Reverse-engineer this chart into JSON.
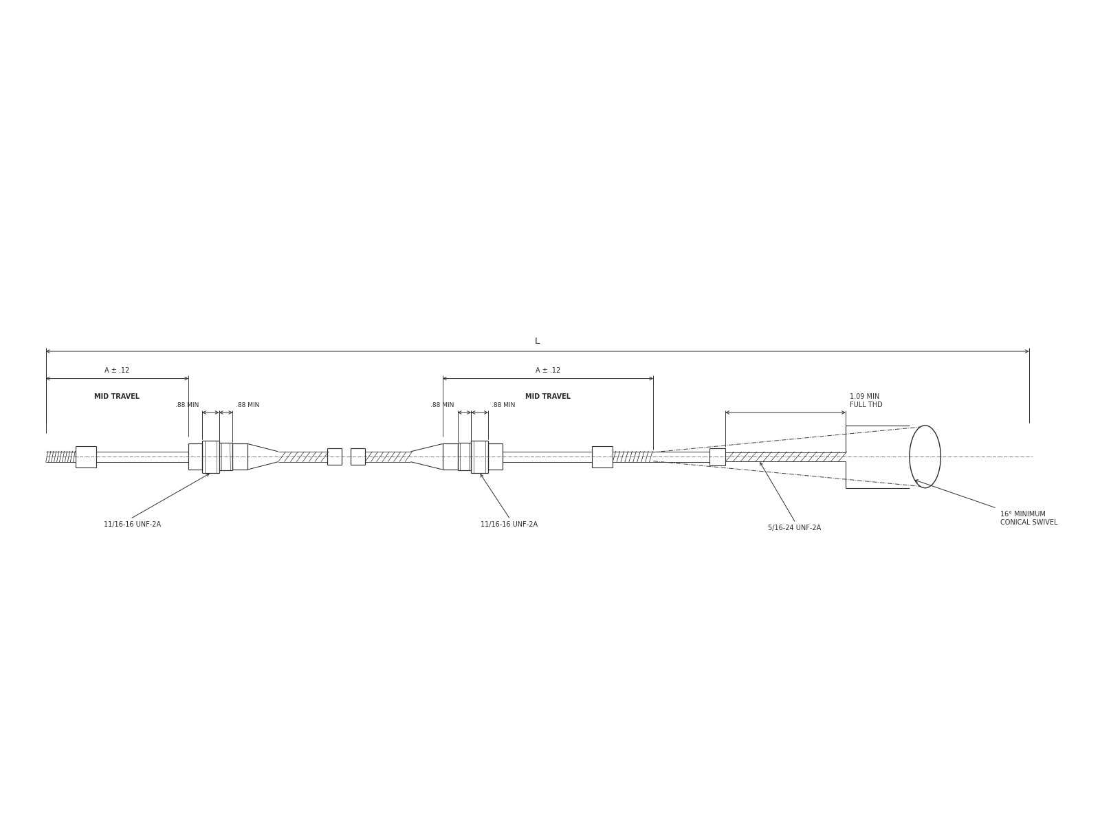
{
  "bg_color": "#ffffff",
  "line_color": "#2a2a2a",
  "text_color": "#2a2a2a",
  "fig_width": 16.0,
  "fig_height": 12.0,
  "dpi": 100,
  "annotations": {
    "L_label": "L",
    "A_label_left": "A ± .12",
    "mid_travel_left": "MID TRAVEL",
    "A_label_right": "A ± .12",
    "mid_travel_right": "MID TRAVEL",
    "dim_88_left1": ".88 MIN",
    "dim_88_left2": ".88 MIN",
    "dim_88_right1": ".88 MIN",
    "dim_88_right2": ".88 MIN",
    "dim_109": "1.09 MIN\nFULL THD",
    "thread_left": "11/16-16 UNF-2A",
    "thread_right": "11/16-16 UNF-2A",
    "thread_swivel": "5/16-24 UNF-2A",
    "conical_swivel": "16° MINIMUM\nCONICAL SWIVEL"
  },
  "font_size": 7.0
}
